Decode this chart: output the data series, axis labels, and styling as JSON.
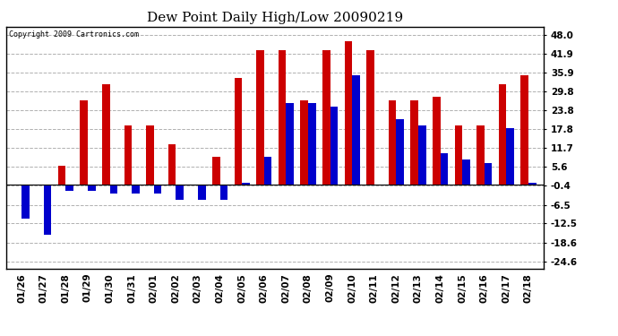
{
  "title": "Dew Point Daily High/Low 20090219",
  "copyright": "Copyright 2009 Cartronics.com",
  "dates": [
    "01/26",
    "01/27",
    "01/28",
    "01/29",
    "01/30",
    "01/31",
    "02/01",
    "02/02",
    "02/03",
    "02/04",
    "02/05",
    "02/06",
    "02/07",
    "02/08",
    "02/09",
    "02/10",
    "02/11",
    "02/12",
    "02/13",
    "02/14",
    "02/15",
    "02/16",
    "02/17",
    "02/18"
  ],
  "highs": [
    -0.4,
    -0.4,
    6.0,
    27.0,
    32.0,
    19.0,
    19.0,
    13.0,
    -0.4,
    9.0,
    34.0,
    43.0,
    43.0,
    27.0,
    43.0,
    46.0,
    43.0,
    27.0,
    27.0,
    28.0,
    19.0,
    19.0,
    32.0,
    35.0
  ],
  "lows": [
    -11.0,
    -16.0,
    -2.0,
    -2.0,
    -3.0,
    -3.0,
    -3.0,
    -5.0,
    -5.0,
    -5.0,
    0.5,
    9.0,
    26.0,
    26.0,
    25.0,
    35.0,
    0.0,
    21.0,
    19.0,
    10.0,
    8.0,
    7.0,
    18.0,
    0.5
  ],
  "high_color": "#cc0000",
  "low_color": "#0000cc",
  "ytick_vals": [
    -24.6,
    -18.6,
    -12.5,
    -6.5,
    -0.4,
    5.6,
    11.7,
    17.8,
    23.8,
    29.8,
    35.9,
    41.9,
    48.0
  ],
  "ymin": -27.0,
  "ymax": 50.5,
  "bg_color": "#ffffff",
  "grid_color": "#b0b0b0",
  "bar_width": 0.35,
  "title_fontsize": 11,
  "tick_fontsize": 7.5,
  "copyright_fontsize": 6.0
}
